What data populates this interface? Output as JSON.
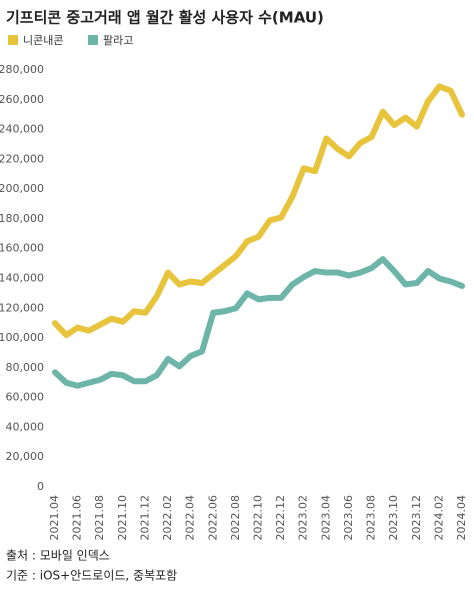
{
  "chart_data": {
    "type": "line",
    "title": "기프티콘 중고거래 앱 월간 활성 사용자 수(MAU)",
    "categories": [
      "2021.04",
      null,
      "2021.06",
      null,
      "2021.08",
      null,
      "2021.10",
      null,
      "2021.12",
      null,
      "2022.02",
      null,
      "2022.04",
      null,
      "2022.06",
      null,
      "2022.08",
      null,
      "2022.10",
      null,
      "2022.12",
      null,
      "2023.02",
      null,
      "2023.04",
      null,
      "2023.06",
      null,
      "2023.08",
      null,
      "2023.10",
      null,
      "2023.12",
      null,
      "2024.02",
      null,
      "2024.04"
    ],
    "series": [
      {
        "name": "니콘내콘",
        "color": "#e8c33c",
        "values": [
          110000,
          102000,
          107000,
          105000,
          109000,
          113000,
          111000,
          118000,
          117000,
          128000,
          144000,
          136000,
          138000,
          137000,
          143000,
          149000,
          155000,
          165000,
          168000,
          179000,
          181000,
          195000,
          214000,
          212000,
          234000,
          227000,
          222000,
          231000,
          235000,
          252000,
          243000,
          248000,
          242000,
          259000,
          269000,
          266000,
          250000
        ]
      },
      {
        "name": "팔라고",
        "color": "#6cb5a8",
        "values": [
          77000,
          70000,
          68000,
          70000,
          72000,
          76000,
          75000,
          71000,
          71000,
          75000,
          86000,
          81000,
          88000,
          91000,
          117000,
          118000,
          120000,
          130000,
          126000,
          127000,
          127000,
          136000,
          141000,
          145000,
          144000,
          144000,
          142000,
          144000,
          147000,
          153000,
          145000,
          136000,
          137000,
          145000,
          140000,
          138000,
          135000
        ]
      }
    ],
    "ylim": [
      0,
      280000
    ],
    "yticks": [
      0,
      {
        "value": 20000,
        "label": "20,000"
      },
      {
        "value": 40000,
        "label": "40,000"
      },
      {
        "value": 60000,
        "label": "60,000"
      },
      {
        "value": 80000,
        "label": "80,000"
      },
      {
        "value": 100000,
        "label": "100,000"
      },
      {
        "value": 120000,
        "label": "120,000"
      },
      {
        "value": 140000,
        "label": "140,000"
      },
      {
        "value": 160000,
        "label": "160,000"
      },
      {
        "value": 180000,
        "label": "180,000"
      },
      {
        "value": 200000,
        "label": "200,000"
      },
      {
        "value": 220000,
        "label": "220,000"
      },
      {
        "value": 240000,
        "label": "240,000"
      },
      {
        "value": 260000,
        "label": "260,000"
      },
      {
        "value": 280000,
        "label": "280,000"
      }
    ],
    "grid": false
  },
  "footer": [
    "출처 : 모바일 인덱스",
    "기준 : iOS+안드로이드, 중복포함"
  ]
}
